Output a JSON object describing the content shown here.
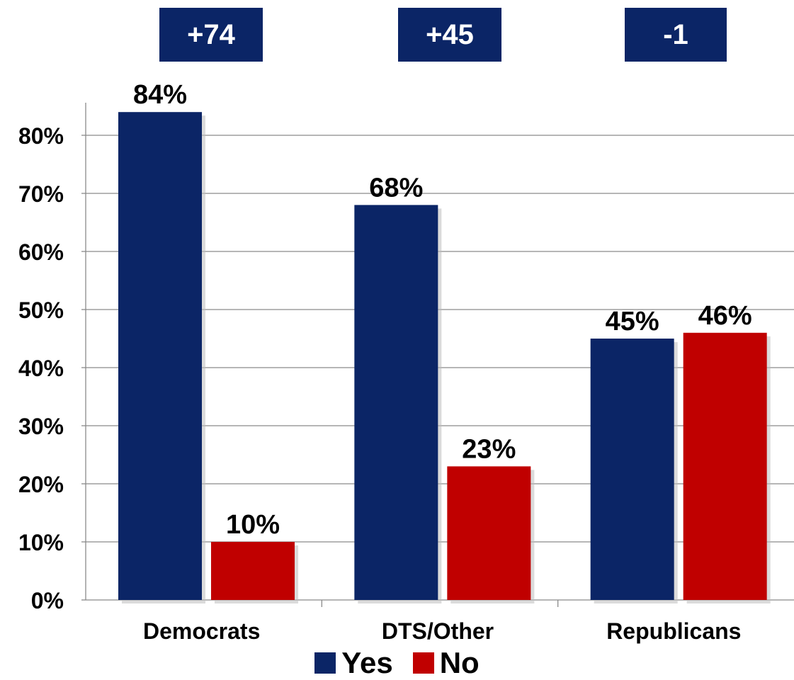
{
  "chart_data": {
    "type": "bar",
    "categories": [
      "Democrats",
      "DTS/Other",
      "Republicans"
    ],
    "series": [
      {
        "name": "Yes",
        "values": [
          84,
          68,
          45
        ],
        "labels": [
          "84%",
          "68%",
          "45%"
        ],
        "color": "#0b2566"
      },
      {
        "name": "No",
        "values": [
          10,
          23,
          46
        ],
        "labels": [
          "10%",
          "23%",
          "46%"
        ],
        "color": "#c00000"
      }
    ],
    "differences": [
      "+74",
      "+45",
      "-1"
    ],
    "yticks": [
      "0%",
      "10%",
      "20%",
      "30%",
      "40%",
      "50%",
      "60%",
      "70%",
      "80%"
    ],
    "ylim": [
      0,
      80
    ],
    "grid": true,
    "legend_position": "bottom-center",
    "title": "",
    "xlabel": "",
    "ylabel": ""
  }
}
